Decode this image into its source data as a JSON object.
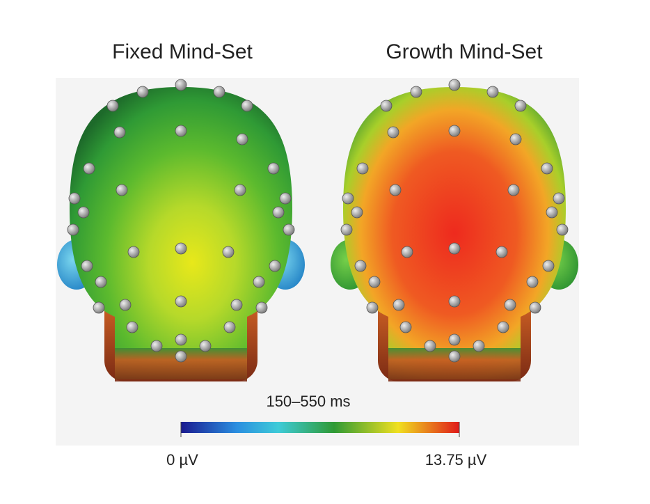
{
  "panels": [
    {
      "title": "Fixed Mind-Set"
    },
    {
      "title": "Growth Mind-Set"
    }
  ],
  "colorbar": {
    "caption": "150–550 ms",
    "min_label": "0 µV",
    "max_label": "13.75 µV"
  }
}
